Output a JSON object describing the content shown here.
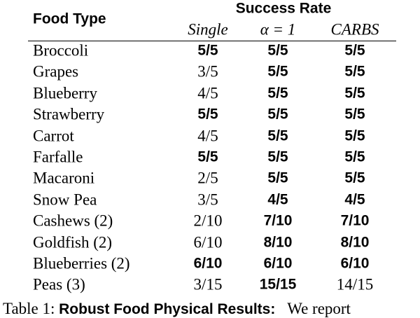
{
  "table": {
    "header": {
      "first": "Food Type",
      "group": "Success Rate",
      "columns": [
        "Single",
        "α = 1",
        "CARBS"
      ]
    },
    "rows": [
      [
        "Broccoli",
        "5/5",
        "5/5",
        "5/5"
      ],
      [
        "Grapes",
        "3/5",
        "5/5",
        "5/5"
      ],
      [
        "Blueberry",
        "4/5",
        "5/5",
        "5/5"
      ],
      [
        "Strawberry",
        "5/5",
        "5/5",
        "5/5"
      ],
      [
        "Carrot",
        "4/5",
        "5/5",
        "5/5"
      ],
      [
        "Farfalle",
        "5/5",
        "5/5",
        "5/5"
      ],
      [
        "Macaroni",
        "2/5",
        "5/5",
        "5/5"
      ],
      [
        "Snow Pea",
        "3/5",
        "4/5",
        "4/5"
      ],
      [
        "Cashews (2)",
        "2/10",
        "7/10",
        "7/10"
      ],
      [
        "Goldfish (2)",
        "6/10",
        "8/10",
        "8/10"
      ],
      [
        "Blueberries (2)",
        "6/10",
        "6/10",
        "6/10"
      ],
      [
        "Peas (3)",
        "3/15",
        "15/15",
        "14/15"
      ]
    ],
    "bold": [
      [
        false,
        true,
        true,
        true
      ],
      [
        false,
        false,
        true,
        true
      ],
      [
        false,
        false,
        true,
        true
      ],
      [
        false,
        true,
        true,
        true
      ],
      [
        false,
        false,
        true,
        true
      ],
      [
        false,
        true,
        true,
        true
      ],
      [
        false,
        false,
        true,
        true
      ],
      [
        false,
        false,
        true,
        true
      ],
      [
        false,
        false,
        true,
        true
      ],
      [
        false,
        false,
        true,
        true
      ],
      [
        false,
        true,
        true,
        true
      ],
      [
        false,
        false,
        true,
        false
      ]
    ]
  },
  "caption": {
    "label": "Table 1:",
    "title": "Robust Food Physical Results:",
    "text": "We report"
  }
}
